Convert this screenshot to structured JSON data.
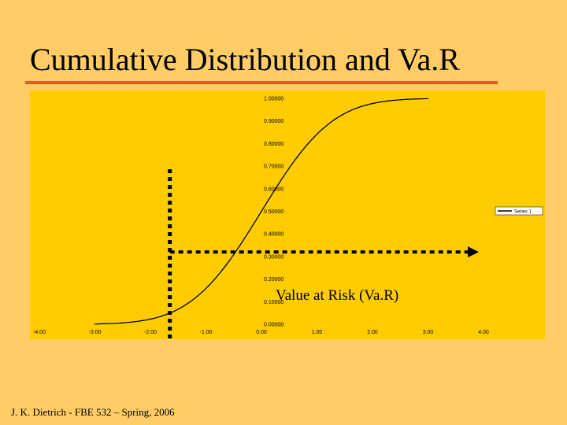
{
  "slide": {
    "title": "Cumulative Distribution and Va.R",
    "footer": "J. K. Dietrich - FBE 532 – Spring, 2006",
    "annotation": "Value at Risk (Va.R)"
  },
  "colors": {
    "slide_background": "#FFCC66",
    "plot_background": "#FFCC00",
    "title_rule": "#E06020",
    "curve": "#000000"
  },
  "chart_data": {
    "type": "line",
    "xlim": [
      -4,
      4
    ],
    "ylim": [
      0,
      1
    ],
    "xticks": [
      "-4.00",
      "-3.00",
      "-2.00",
      "-1.00",
      "0.00",
      "1.00",
      "2.00",
      "3.00",
      "4.00"
    ],
    "yticks": [
      "0.00000",
      "0.10000",
      "0.20000",
      "0.30000",
      "0.40000",
      "0.50000",
      "0.60000",
      "0.70000",
      "0.80000",
      "0.90000",
      "1.00000"
    ],
    "series": [
      {
        "name": "Series 1",
        "x": [
          -3.0,
          -2.5,
          -2.0,
          -1.5,
          -1.0,
          -0.5,
          0.0,
          0.5,
          1.0,
          1.5,
          2.0,
          2.5,
          3.0
        ],
        "y": [
          0.0013,
          0.0062,
          0.0228,
          0.0668,
          0.1587,
          0.3085,
          0.5,
          0.6915,
          0.8413,
          0.9332,
          0.9772,
          0.9938,
          0.9987
        ]
      }
    ],
    "var_x": -1.65,
    "var_y": 0.32,
    "legend": "right",
    "grid": false
  }
}
